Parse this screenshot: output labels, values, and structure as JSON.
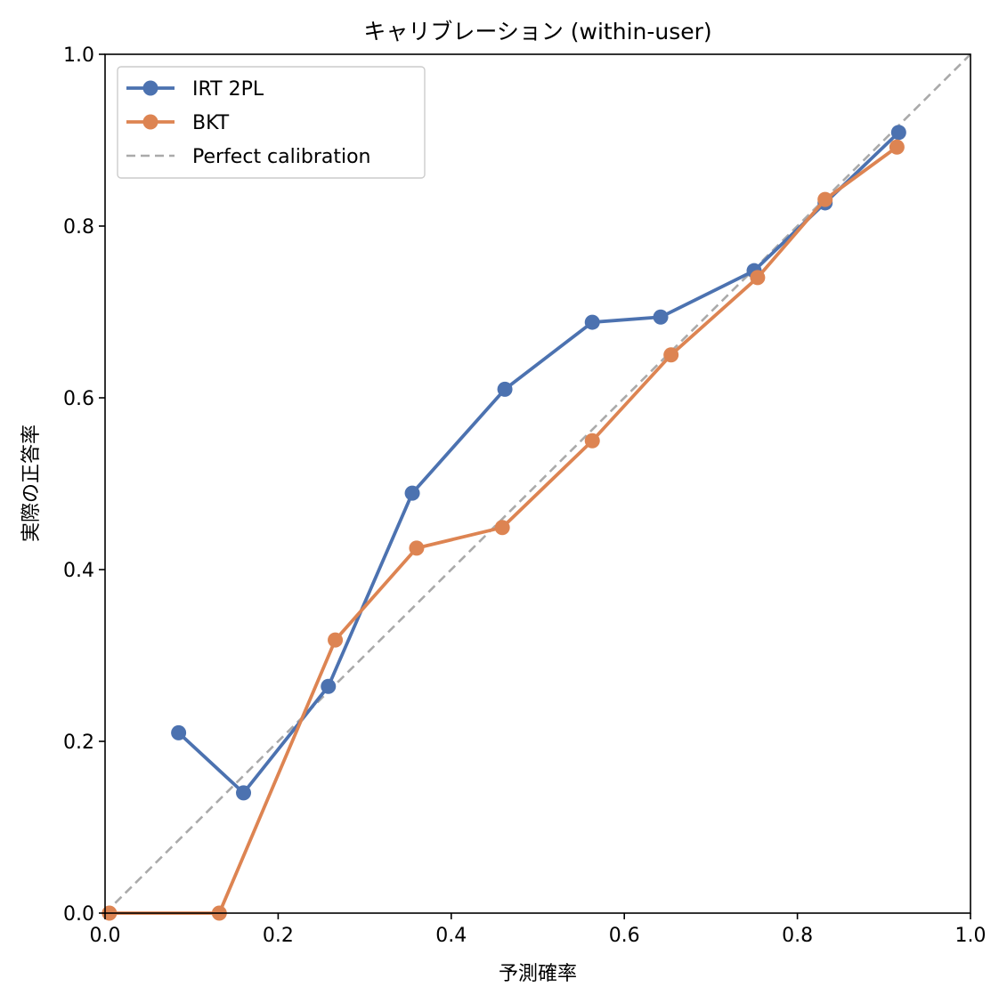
{
  "chart_data": {
    "type": "line",
    "title": "キャリブレーション (within-user)",
    "xlabel": "予測確率",
    "ylabel": "実際の正答率",
    "xlim": [
      0.0,
      1.0
    ],
    "ylim": [
      0.0,
      1.0
    ],
    "xticks": [
      "0.0",
      "0.2",
      "0.4",
      "0.6",
      "0.8",
      "1.0"
    ],
    "yticks": [
      "0.0",
      "0.2",
      "0.4",
      "0.6",
      "0.8",
      "1.0"
    ],
    "grid": false,
    "legend_position": "top-left",
    "series": [
      {
        "name": "IRT 2PL",
        "color": "#4c72b0",
        "marker": "circle",
        "style": "solid",
        "x": [
          0.085,
          0.16,
          0.258,
          0.355,
          0.462,
          0.563,
          0.642,
          0.75,
          0.832,
          0.917
        ],
        "y": [
          0.21,
          0.14,
          0.264,
          0.489,
          0.61,
          0.688,
          0.694,
          0.748,
          0.827,
          0.909
        ]
      },
      {
        "name": "BKT",
        "color": "#dd8452",
        "marker": "circle",
        "style": "solid",
        "x": [
          0.005,
          0.132,
          0.266,
          0.36,
          0.459,
          0.563,
          0.654,
          0.754,
          0.832,
          0.915
        ],
        "y": [
          0.0,
          0.0,
          0.318,
          0.425,
          0.449,
          0.55,
          0.65,
          0.74,
          0.831,
          0.892
        ]
      },
      {
        "name": "Perfect calibration",
        "color": "#aaaaaa",
        "marker": "none",
        "style": "dashed",
        "x": [
          0.0,
          1.0
        ],
        "y": [
          0.0,
          1.0
        ]
      }
    ]
  }
}
